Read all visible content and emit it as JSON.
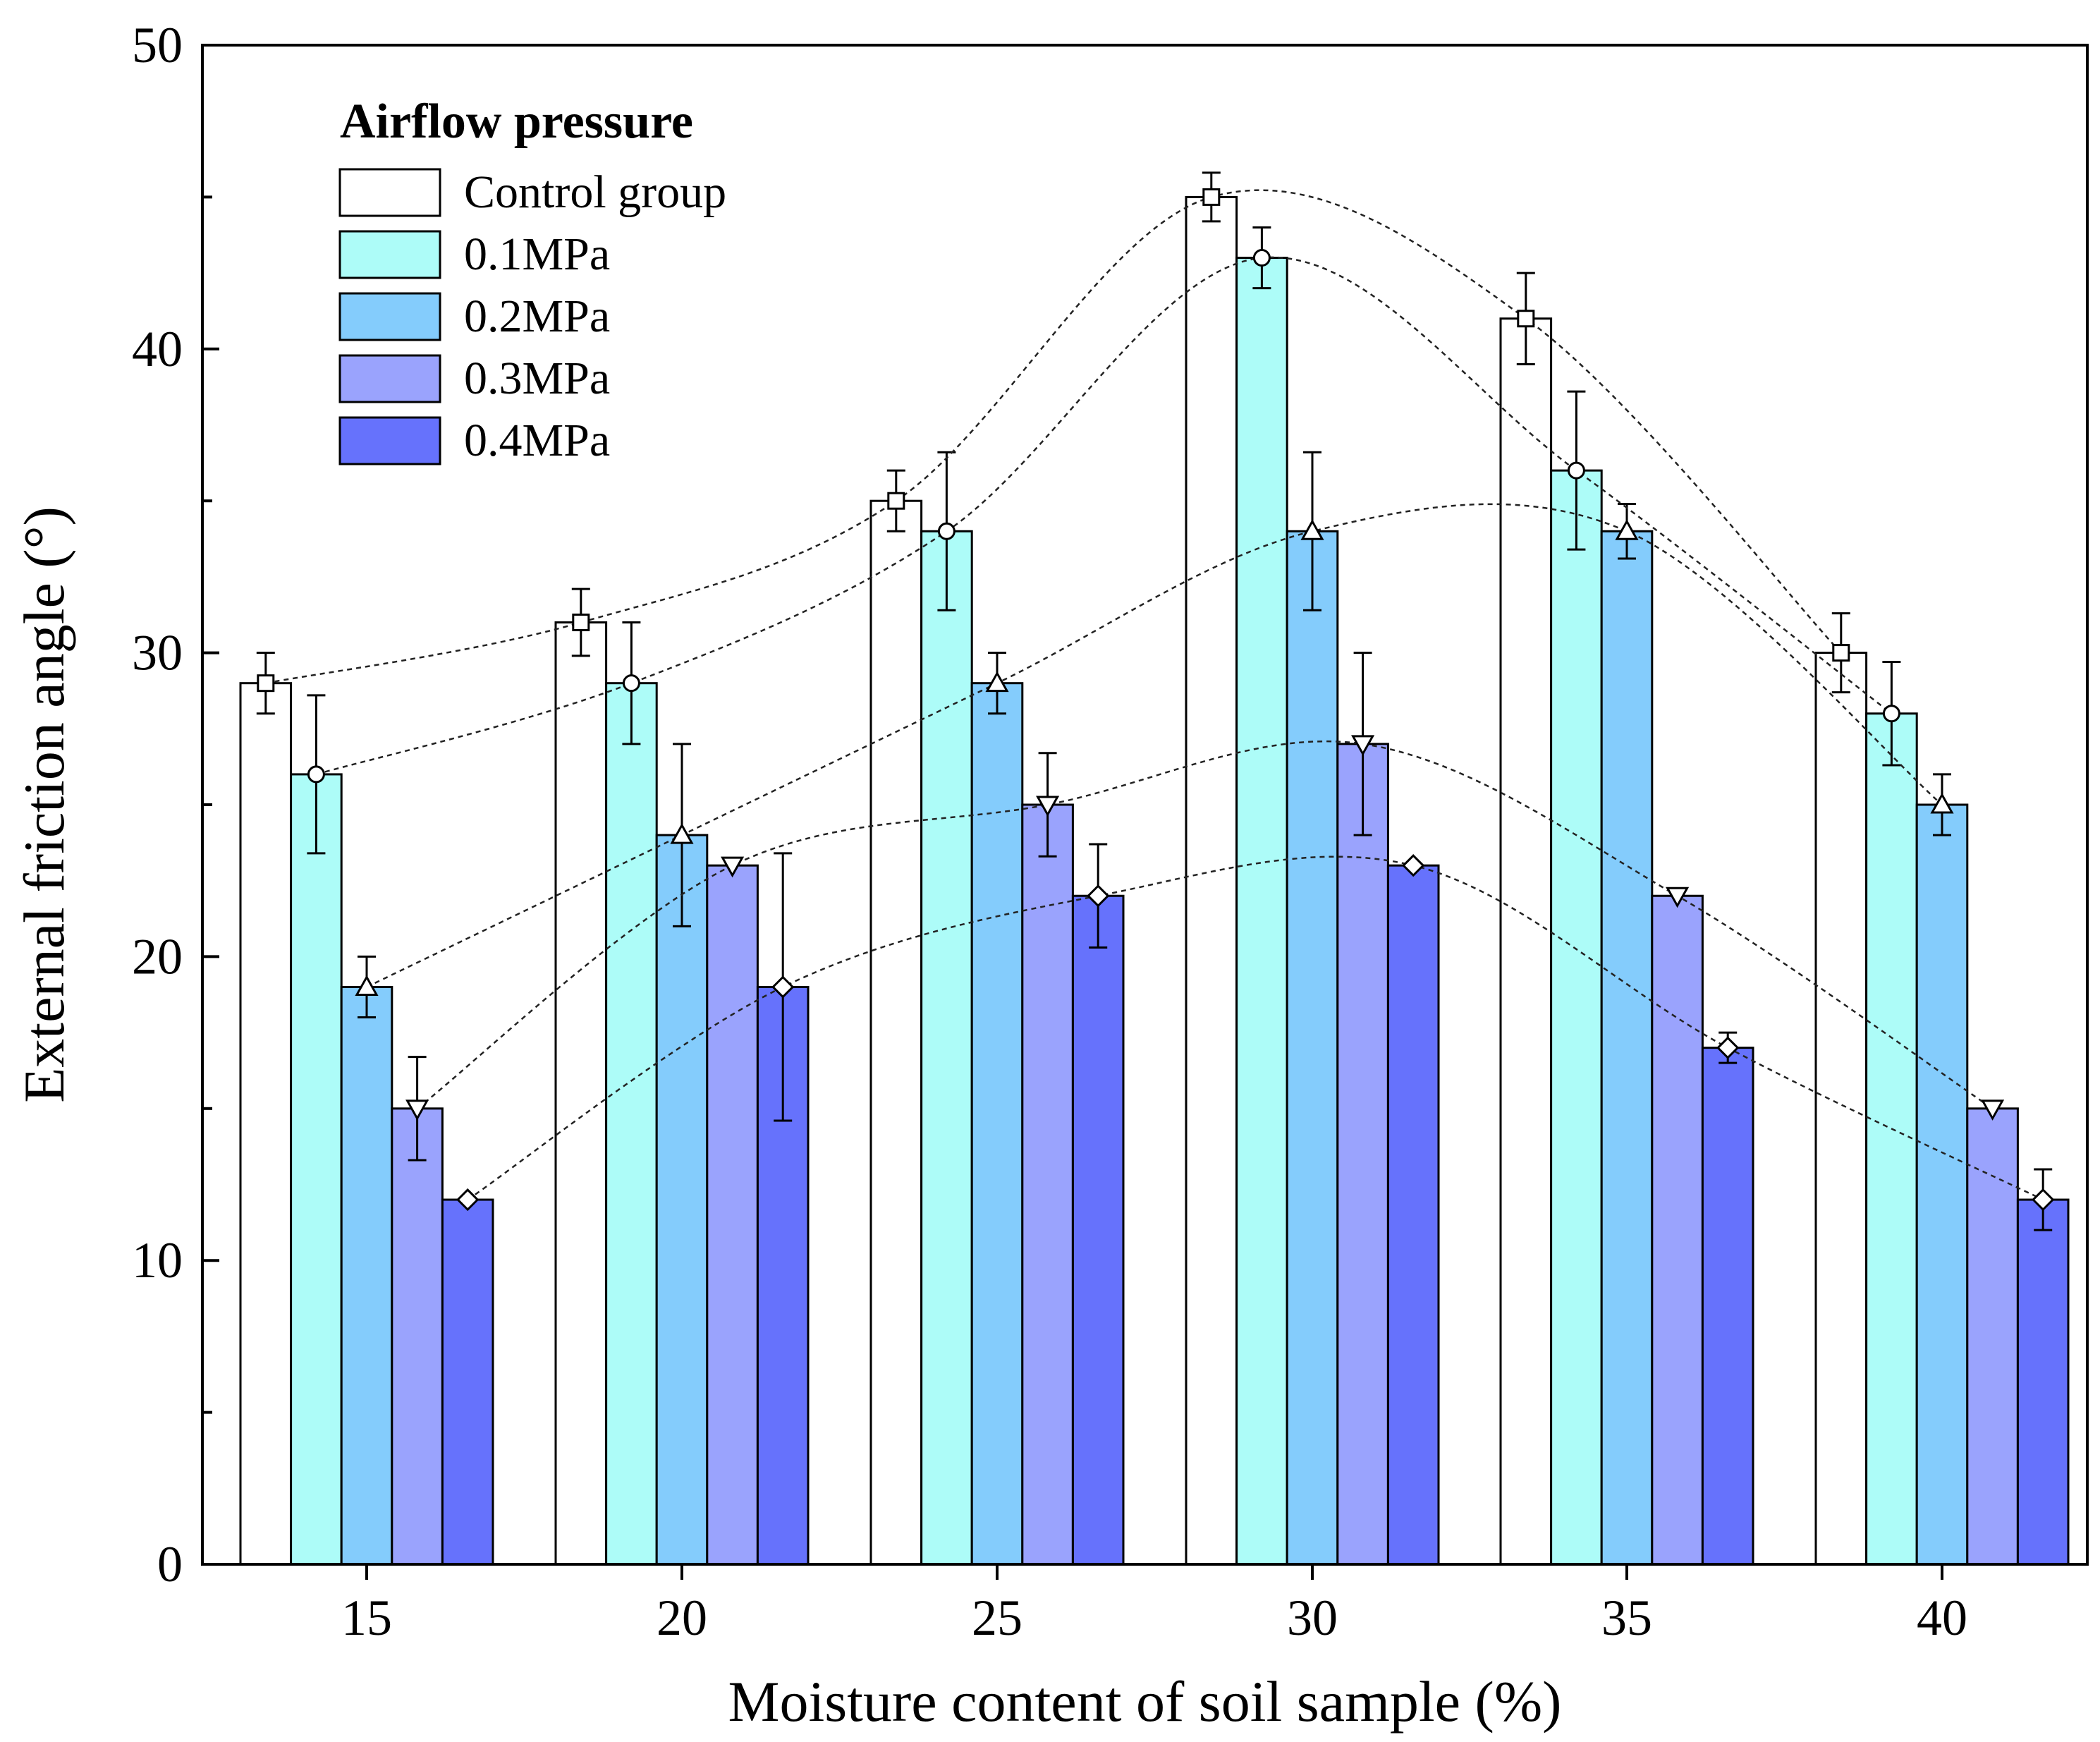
{
  "chart_data": {
    "type": "bar",
    "title": "",
    "xlabel": "Moisture content of soil sample (%)",
    "ylabel": "External friction angle (°)",
    "ylim": [
      0,
      50
    ],
    "y_ticks": [
      0,
      10,
      20,
      30,
      40,
      50
    ],
    "categories": [
      "15",
      "20",
      "25",
      "30",
      "35",
      "40"
    ],
    "legend": {
      "title": "Airflow pressure",
      "placement": "top-left"
    },
    "series": [
      {
        "name": "Control group",
        "color": "#ffffff",
        "marker": "square",
        "values": [
          29,
          31,
          35,
          45,
          41,
          30
        ],
        "errors": [
          1.0,
          1.1,
          1.0,
          0.8,
          1.5,
          1.3
        ]
      },
      {
        "name": "0.1MPa",
        "color": "#adfcf8",
        "marker": "circle",
        "values": [
          26,
          29,
          34,
          43,
          36,
          28
        ],
        "errors": [
          2.6,
          2.0,
          2.6,
          1.0,
          2.6,
          1.7
        ]
      },
      {
        "name": "0.2MPa",
        "color": "#84ccfc",
        "marker": "triangle-up",
        "values": [
          19,
          24,
          29,
          34,
          34,
          25
        ],
        "errors": [
          1.0,
          3.0,
          1.0,
          2.6,
          0.9,
          1.0
        ]
      },
      {
        "name": "0.3MPa",
        "color": "#9aa3fd",
        "marker": "triangle-down",
        "values": [
          15,
          23,
          25,
          27,
          22,
          15
        ],
        "errors": [
          1.7,
          0,
          1.7,
          3.0,
          0,
          0
        ]
      },
      {
        "name": "0.4MPa",
        "color": "#6672fc",
        "marker": "diamond",
        "values": [
          12,
          19,
          22,
          23,
          17,
          12
        ],
        "errors": [
          0,
          4.4,
          1.7,
          0,
          0.5,
          1.0
        ]
      }
    ]
  }
}
